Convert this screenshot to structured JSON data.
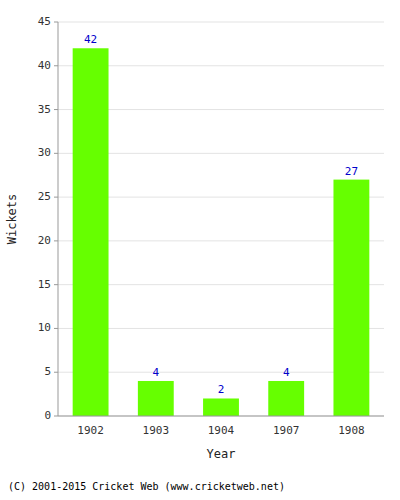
{
  "chart_data": {
    "type": "bar",
    "xlabel": "Year",
    "ylabel": "Wickets",
    "footer": "(C) 2001-2015 Cricket Web (www.cricketweb.net)",
    "categories": [
      "1902",
      "1903",
      "1904",
      "1907",
      "1908"
    ],
    "values": [
      42,
      4,
      2,
      4,
      27
    ],
    "color": "#66ff00",
    "ylim": [
      0,
      45
    ],
    "yticks": [
      0,
      5,
      10,
      15,
      20,
      25,
      30,
      35,
      40,
      45
    ],
    "grid": true,
    "data_labels": true
  }
}
